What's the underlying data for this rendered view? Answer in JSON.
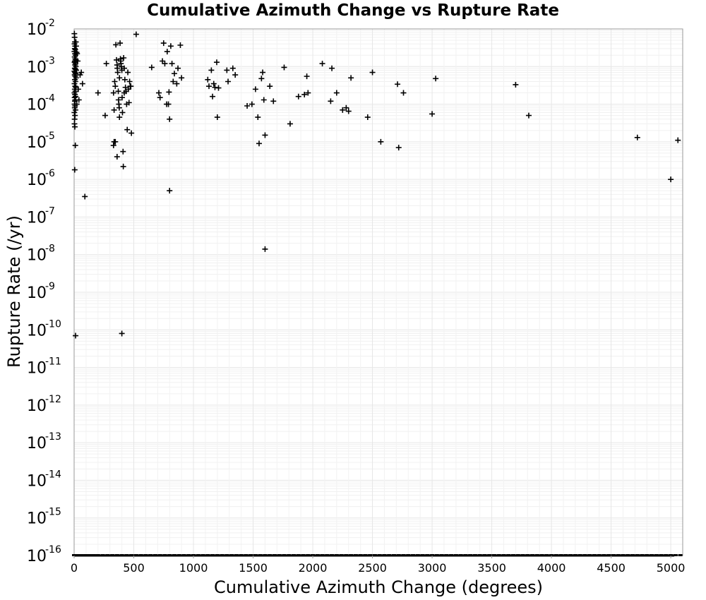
{
  "chart_data": {
    "type": "scatter",
    "title": "Cumulative Azimuth Change vs Rupture Rate",
    "xlabel": "Cumulative Azimuth Change (degrees)",
    "ylabel": "Rupture Rate (/yr)",
    "xlim": [
      0,
      5100
    ],
    "ylim": [
      1e-16,
      0.01
    ],
    "yscale": "log",
    "grid": true,
    "marker": "plus",
    "marker_color": "#000000",
    "grid_color": "#e6e6e6",
    "x_ticks": [
      0,
      500,
      1000,
      1500,
      2000,
      2500,
      3000,
      3500,
      4000,
      4500,
      5000
    ],
    "y_tick_labels": [
      {
        "base": "10",
        "exp": "-2"
      },
      {
        "base": "10",
        "exp": "-3"
      },
      {
        "base": "10",
        "exp": "-4"
      },
      {
        "base": "10",
        "exp": "-5"
      },
      {
        "base": "10",
        "exp": "-6"
      },
      {
        "base": "10",
        "exp": "-7"
      },
      {
        "base": "10",
        "exp": "-8"
      },
      {
        "base": "10",
        "exp": "-9"
      },
      {
        "base": "10",
        "exp": "-10"
      },
      {
        "base": "10",
        "exp": "-11"
      },
      {
        "base": "10",
        "exp": "-12"
      },
      {
        "base": "10",
        "exp": "-13"
      },
      {
        "base": "10",
        "exp": "-14"
      },
      {
        "base": "10",
        "exp": "-15"
      },
      {
        "base": "10",
        "exp": "-16"
      }
    ],
    "points": [
      [
        2,
        0.0075
      ],
      [
        4,
        0.006
      ],
      [
        6,
        0.0045
      ],
      [
        3,
        0.004
      ],
      [
        8,
        0.0035
      ],
      [
        5,
        0.003
      ],
      [
        10,
        0.0028
      ],
      [
        2,
        0.0025
      ],
      [
        7,
        0.0022
      ],
      [
        12,
        0.002
      ],
      [
        4,
        0.0018
      ],
      [
        9,
        0.0016
      ],
      [
        15,
        0.0015
      ],
      [
        6,
        0.0014
      ],
      [
        3,
        0.0013
      ],
      [
        11,
        0.0012
      ],
      [
        8,
        0.0011
      ],
      [
        14,
        0.001
      ],
      [
        5,
        0.0009
      ],
      [
        10,
        0.00085
      ],
      [
        18,
        0.0008
      ],
      [
        2,
        0.00075
      ],
      [
        7,
        0.0007
      ],
      [
        13,
        0.00065
      ],
      [
        4,
        0.0006
      ],
      [
        9,
        0.00055
      ],
      [
        16,
        0.0005
      ],
      [
        6,
        0.00045
      ],
      [
        11,
        0.0004
      ],
      [
        3,
        0.00035
      ],
      [
        8,
        0.0003
      ],
      [
        14,
        0.00028
      ],
      [
        5,
        0.00025
      ],
      [
        10,
        0.00022
      ],
      [
        2,
        0.0002
      ],
      [
        7,
        0.00018
      ],
      [
        12,
        0.00016
      ],
      [
        4,
        0.00015
      ],
      [
        9,
        0.00013
      ],
      [
        6,
        0.00012
      ],
      [
        3,
        0.0001
      ],
      [
        8,
        9e-05
      ],
      [
        5,
        8e-05
      ],
      [
        11,
        7e-05
      ],
      [
        2,
        6e-05
      ],
      [
        7,
        5e-05
      ],
      [
        4,
        4e-05
      ],
      [
        3,
        3e-05
      ],
      [
        6,
        2.5e-05
      ],
      [
        15,
        0.0045
      ],
      [
        17,
        0.0035
      ],
      [
        20,
        0.0024
      ],
      [
        25,
        0.0022
      ],
      [
        30,
        0.0014
      ],
      [
        35,
        0.00025
      ],
      [
        40,
        0.00013
      ],
      [
        50,
        0.0006
      ],
      [
        60,
        0.0007
      ],
      [
        70,
        0.00035
      ],
      [
        22,
        0.0001
      ],
      [
        10,
        8e-06
      ],
      [
        5,
        1.8e-06
      ],
      [
        90,
        3.5e-07
      ],
      [
        12,
        7e-11
      ],
      [
        200,
        0.0002
      ],
      [
        260,
        5e-05
      ],
      [
        270,
        0.0012
      ],
      [
        330,
        0.0002
      ],
      [
        335,
        7e-05
      ],
      [
        340,
        0.0004
      ],
      [
        345,
        1e-05
      ],
      [
        350,
        0.0038
      ],
      [
        355,
        0.0015
      ],
      [
        360,
        0.0011
      ],
      [
        362,
        0.0009
      ],
      [
        365,
        0.0007
      ],
      [
        370,
        0.00022
      ],
      [
        372,
        0.00013
      ],
      [
        375,
        0.0001
      ],
      [
        378,
        8e-05
      ],
      [
        380,
        4.5e-05
      ],
      [
        385,
        0.0042
      ],
      [
        388,
        0.0016
      ],
      [
        390,
        0.0014
      ],
      [
        392,
        0.0012
      ],
      [
        395,
        0.001
      ],
      [
        400,
        0.0008
      ],
      [
        402,
        0.00015
      ],
      [
        405,
        6e-05
      ],
      [
        410,
        5.5e-06
      ],
      [
        412,
        2.2e-06
      ],
      [
        400,
        8e-11
      ],
      [
        415,
        0.0017
      ],
      [
        420,
        0.0009
      ],
      [
        425,
        0.00045
      ],
      [
        430,
        0.00028
      ],
      [
        435,
        0.00022
      ],
      [
        440,
        0.0001
      ],
      [
        445,
        2.1e-05
      ],
      [
        450,
        0.0007
      ],
      [
        455,
        0.00025
      ],
      [
        460,
        0.00011
      ],
      [
        465,
        0.0004
      ],
      [
        470,
        0.0003
      ],
      [
        475,
        0.0003
      ],
      [
        480,
        1.7e-05
      ],
      [
        330,
        8e-06
      ],
      [
        360,
        4e-06
      ],
      [
        335,
        1e-05
      ],
      [
        345,
        0.0003
      ],
      [
        380,
        0.0005
      ],
      [
        420,
        0.0002
      ],
      [
        520,
        0.0072
      ],
      [
        650,
        0.00095
      ],
      [
        710,
        0.0002
      ],
      [
        720,
        0.00015
      ],
      [
        740,
        0.0014
      ],
      [
        750,
        0.0042
      ],
      [
        760,
        0.0012
      ],
      [
        775,
        0.0001
      ],
      [
        780,
        0.0025
      ],
      [
        790,
        0.0001
      ],
      [
        795,
        0.00021
      ],
      [
        800,
        4e-05
      ],
      [
        800,
        5e-07
      ],
      [
        810,
        0.0035
      ],
      [
        820,
        0.0012
      ],
      [
        830,
        0.0004
      ],
      [
        840,
        0.00065
      ],
      [
        860,
        0.00035
      ],
      [
        870,
        0.0009
      ],
      [
        890,
        0.0037
      ],
      [
        900,
        0.0005
      ],
      [
        1120,
        0.00045
      ],
      [
        1130,
        0.0003
      ],
      [
        1150,
        0.0008
      ],
      [
        1160,
        0.00016
      ],
      [
        1170,
        0.00035
      ],
      [
        1180,
        0.00028
      ],
      [
        1195,
        0.0013
      ],
      [
        1200,
        4.5e-05
      ],
      [
        1210,
        0.00027
      ],
      [
        1280,
        0.0008
      ],
      [
        1290,
        0.0004
      ],
      [
        1330,
        0.0009
      ],
      [
        1350,
        0.0006
      ],
      [
        1450,
        9e-05
      ],
      [
        1490,
        0.0001
      ],
      [
        1520,
        0.00025
      ],
      [
        1540,
        4.5e-05
      ],
      [
        1550,
        9e-06
      ],
      [
        1570,
        0.00048
      ],
      [
        1580,
        0.0007
      ],
      [
        1590,
        0.00013
      ],
      [
        1600,
        1.5e-05
      ],
      [
        1600,
        1.4e-08
      ],
      [
        1640,
        0.0003
      ],
      [
        1670,
        0.00012
      ],
      [
        1760,
        0.00095
      ],
      [
        1810,
        3e-05
      ],
      [
        1880,
        0.00016
      ],
      [
        1930,
        0.00018
      ],
      [
        1950,
        0.00055
      ],
      [
        1960,
        0.0002
      ],
      [
        2080,
        0.0012
      ],
      [
        2150,
        0.00012
      ],
      [
        2160,
        0.0009
      ],
      [
        2200,
        0.0002
      ],
      [
        2250,
        7e-05
      ],
      [
        2280,
        8e-05
      ],
      [
        2300,
        6.5e-05
      ],
      [
        2320,
        0.0005
      ],
      [
        2460,
        4.5e-05
      ],
      [
        2500,
        0.0007
      ],
      [
        2570,
        1e-05
      ],
      [
        2710,
        0.00034
      ],
      [
        2720,
        7e-06
      ],
      [
        2760,
        0.0002
      ],
      [
        3000,
        5.5e-05
      ],
      [
        3030,
        0.00048
      ],
      [
        3700,
        0.00033
      ],
      [
        3810,
        5e-05
      ],
      [
        4720,
        1.3e-05
      ],
      [
        5000,
        1e-06
      ],
      [
        5060,
        1.1e-05
      ]
    ],
    "baseline_points_x": [
      0,
      30,
      60,
      95,
      130,
      165,
      200,
      240,
      280,
      320,
      360,
      400,
      440,
      480,
      520,
      560,
      600,
      640,
      680,
      720,
      760,
      800,
      840,
      880,
      920,
      960,
      1000,
      1040,
      1080,
      1120,
      1160,
      1200,
      1240,
      1280,
      1320,
      1360,
      1400,
      1440,
      1480,
      1520,
      1560,
      1600,
      1640,
      1680,
      1720,
      1760,
      1800,
      1840,
      1880,
      1920,
      1960,
      2000,
      2040,
      2080,
      2120,
      2160,
      2200,
      2240,
      2280,
      2320,
      2360,
      2400,
      2440,
      2480,
      2520,
      2560,
      2600,
      2640,
      2680,
      2720,
      2760,
      2800,
      2840,
      2880,
      2920,
      2960,
      3000,
      3040,
      3080,
      3120,
      3160,
      3200,
      3240,
      3280,
      3320,
      3360,
      3400,
      3440,
      3480,
      3520,
      3560,
      3600,
      3640,
      3680,
      3720,
      3760,
      3800,
      3840,
      3880,
      3920,
      3960,
      4000,
      4040,
      4080,
      4120,
      4160,
      4200,
      4240,
      4280,
      4320,
      4360,
      4400,
      4440,
      4480,
      4520,
      4560,
      4600,
      4640,
      4680,
      4720,
      4760,
      4800,
      4840,
      4880,
      4920,
      4960,
      5000,
      5040,
      5080
    ],
    "baseline_value": 1e-16
  }
}
